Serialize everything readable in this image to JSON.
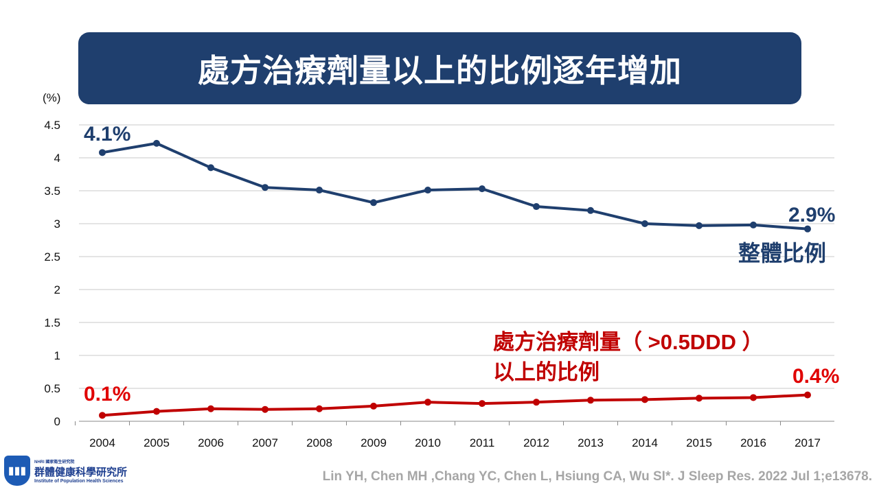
{
  "title": "處方治療劑量以上的比例逐年增加",
  "chart_data": {
    "type": "line",
    "ylabel": "(%)",
    "ylim": [
      0,
      4.5
    ],
    "yticks": [
      "0",
      "0.5",
      "1",
      "1.5",
      "2",
      "2.5",
      "3",
      "3.5",
      "4",
      "4.5"
    ],
    "categories": [
      "2004",
      "2005",
      "2006",
      "2007",
      "2008",
      "2009",
      "2010",
      "2011",
      "2012",
      "2013",
      "2014",
      "2015",
      "2016",
      "2017"
    ],
    "grid": true,
    "series": [
      {
        "name": "整體比例",
        "color": "#1f3f6e",
        "values": [
          4.08,
          4.22,
          3.85,
          3.55,
          3.51,
          3.32,
          3.51,
          3.53,
          3.26,
          3.2,
          3.0,
          2.97,
          2.98,
          2.92
        ]
      },
      {
        "name": "處方治療劑量（>0.5DDD）以上的比例",
        "color": "#c00000",
        "values": [
          0.09,
          0.15,
          0.19,
          0.18,
          0.19,
          0.23,
          0.29,
          0.27,
          0.29,
          0.32,
          0.33,
          0.35,
          0.36,
          0.4
        ]
      }
    ],
    "annotations": {
      "blue_start": "4.1%",
      "blue_end": "2.9%",
      "blue_label": "整體比例",
      "red_start": "0.1%",
      "red_end": "0.4%",
      "red_label_line1": "處方治療劑量（ >0.5DDD ）",
      "red_label_line2": "以上的比例"
    }
  },
  "logo": {
    "small": "NHRI 國家衛生研究院",
    "name": "群體健康科學研究所",
    "english": "Institute of Population Health Sciences"
  },
  "citation": "Lin YH, Chen MH ,Chang YC, Chen L, Hsiung CA, Wu SI*. J Sleep Res. 2022 Jul 1;e13678."
}
